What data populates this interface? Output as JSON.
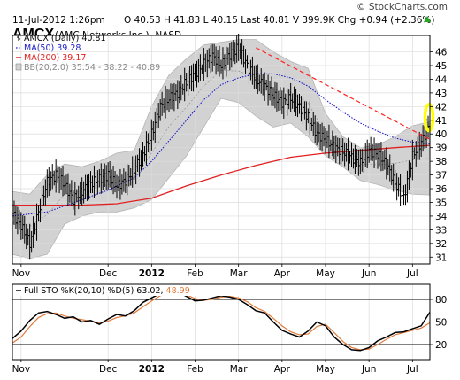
{
  "header": {
    "date_time": "11-Jul-2012 1:26pm",
    "quote_line": "O 40.53 H 41.83 L 40.15 Last 40.81 V 399.9K Chg +0.94 (+2.36%)",
    "watermark": "© StockCharts.com"
  },
  "title": {
    "symbol": "AMCX",
    "name": "(AMC Networks Inc.)",
    "exchange": "NASD"
  },
  "colors": {
    "price": "#000000",
    "ma50": "#1a1ac8",
    "ma200": "#e02020",
    "bollinger_fill": "#d2d2d2",
    "trendline": "#ff2020",
    "highlight": "#ffff00",
    "stoch_k": "#000000",
    "stoch_d": "#e07a3a",
    "up_arrow": "#22aa22"
  },
  "chart_data": [
    {
      "type": "ohlc",
      "title": "AMCX (Daily) 40.81",
      "legend": [
        {
          "label": "AMCX (Daily) 40.81",
          "color": "#000000"
        },
        {
          "label": "MA(50) 39.28",
          "color": "#1a1ac8",
          "style": "dotted"
        },
        {
          "label": "MA(200) 39.17",
          "color": "#e02020",
          "style": "solid"
        },
        {
          "label": "BB(20,2.0) 35.54 - 38.22 - 40.89",
          "color": "#888888",
          "style": "band"
        }
      ],
      "legend_placement": "top-left",
      "x_tick_labels": [
        "Nov",
        "Dec",
        "2012",
        "Feb",
        "Mar",
        "Apr",
        "May",
        "Jun",
        "Jul"
      ],
      "y_axis_side": "right",
      "y_ticks": [
        31,
        32,
        33,
        34,
        35,
        36,
        37,
        38,
        39,
        40,
        41,
        42,
        43,
        44,
        45,
        46
      ],
      "ylim": [
        30.5,
        47.2
      ],
      "grid": true,
      "series": [
        {
          "name": "AMCX (Daily)",
          "kind": "close_path",
          "points": [
            [
              0,
              34.2
            ],
            [
              5,
              33.3
            ],
            [
              10,
              32.0
            ],
            [
              15,
              34.3
            ],
            [
              20,
              36.5
            ],
            [
              25,
              37.0
            ],
            [
              30,
              36.3
            ],
            [
              35,
              35.2
            ],
            [
              40,
              35.8
            ],
            [
              45,
              36.4
            ],
            [
              50,
              36.7
            ],
            [
              55,
              37.0
            ],
            [
              60,
              36.2
            ],
            [
              65,
              36.6
            ],
            [
              70,
              37.4
            ],
            [
              75,
              38.5
            ],
            [
              80,
              40.0
            ],
            [
              85,
              42.0
            ],
            [
              90,
              42.6
            ],
            [
              95,
              43.0
            ],
            [
              100,
              43.8
            ],
            [
              105,
              44.4
            ],
            [
              110,
              45.1
            ],
            [
              115,
              45.7
            ],
            [
              120,
              45.0
            ],
            [
              125,
              45.8
            ],
            [
              130,
              46.3
            ],
            [
              135,
              45.0
            ],
            [
              140,
              44.0
            ],
            [
              145,
              43.5
            ],
            [
              150,
              42.8
            ],
            [
              155,
              42.3
            ],
            [
              160,
              42.6
            ],
            [
              165,
              42.0
            ],
            [
              170,
              41.2
            ],
            [
              175,
              40.0
            ],
            [
              180,
              39.6
            ],
            [
              185,
              39.0
            ],
            [
              190,
              38.7
            ],
            [
              195,
              38.3
            ],
            [
              200,
              37.9
            ],
            [
              205,
              38.8
            ],
            [
              210,
              38.5
            ],
            [
              215,
              37.8
            ],
            [
              220,
              36.4
            ],
            [
              225,
              35.3
            ],
            [
              230,
              38.4
            ],
            [
              235,
              39.4
            ],
            [
              240,
              40.81
            ]
          ]
        },
        {
          "name": "MA(50) 39.28",
          "kind": "line",
          "style": "dotted",
          "points": [
            [
              0,
              34.0
            ],
            [
              20,
              34.3
            ],
            [
              40,
              35.2
            ],
            [
              55,
              35.9
            ],
            [
              70,
              36.8
            ],
            [
              80,
              38.0
            ],
            [
              90,
              39.5
            ],
            [
              100,
              41.0
            ],
            [
              110,
              42.5
            ],
            [
              120,
              43.6
            ],
            [
              130,
              44.1
            ],
            [
              140,
              44.4
            ],
            [
              150,
              44.4
            ],
            [
              160,
              44.1
            ],
            [
              170,
              43.5
            ],
            [
              180,
              42.5
            ],
            [
              190,
              41.6
            ],
            [
              200,
              40.8
            ],
            [
              210,
              40.2
            ],
            [
              220,
              39.7
            ],
            [
              230,
              39.4
            ],
            [
              240,
              39.28
            ]
          ]
        },
        {
          "name": "MA(200) 39.17",
          "kind": "line",
          "style": "solid",
          "points": [
            [
              0,
              34.8
            ],
            [
              20,
              34.8
            ],
            [
              40,
              34.8
            ],
            [
              60,
              34.9
            ],
            [
              80,
              35.3
            ],
            [
              100,
              36.2
            ],
            [
              120,
              37.0
            ],
            [
              140,
              37.7
            ],
            [
              160,
              38.3
            ],
            [
              180,
              38.6
            ],
            [
              200,
              38.8
            ],
            [
              220,
              39.0
            ],
            [
              240,
              39.17
            ]
          ]
        },
        {
          "name": "BB upper",
          "kind": "band_upper",
          "points": [
            [
              0,
              35.8
            ],
            [
              10,
              35.6
            ],
            [
              20,
              37.0
            ],
            [
              30,
              37.8
            ],
            [
              40,
              37.6
            ],
            [
              50,
              38.0
            ],
            [
              60,
              38.6
            ],
            [
              70,
              38.8
            ],
            [
              80,
              42.0
            ],
            [
              90,
              44.3
            ],
            [
              100,
              45.5
            ],
            [
              110,
              46.5
            ],
            [
              120,
              46.7
            ],
            [
              130,
              46.9
            ],
            [
              140,
              46.9
            ],
            [
              150,
              46.0
            ],
            [
              160,
              45.3
            ],
            [
              170,
              44.8
            ],
            [
              180,
              41.5
            ],
            [
              190,
              39.8
            ],
            [
              200,
              39.0
            ],
            [
              210,
              39.2
            ],
            [
              220,
              39.8
            ],
            [
              230,
              40.6
            ],
            [
              240,
              40.89
            ]
          ]
        },
        {
          "name": "BB lower",
          "kind": "band_lower",
          "points": [
            [
              240,
              35.54
            ],
            [
              230,
              35.6
            ],
            [
              220,
              35.9
            ],
            [
              210,
              36.3
            ],
            [
              200,
              36.6
            ],
            [
              190,
              37.6
            ],
            [
              180,
              38.4
            ],
            [
              170,
              39.8
            ],
            [
              160,
              40.8
            ],
            [
              150,
              40.5
            ],
            [
              140,
              41.3
            ],
            [
              130,
              42.3
            ],
            [
              120,
              42.6
            ],
            [
              110,
              40.5
            ],
            [
              100,
              38.4
            ],
            [
              90,
              36.8
            ],
            [
              80,
              35.2
            ],
            [
              70,
              34.6
            ],
            [
              60,
              34.3
            ],
            [
              50,
              34.3
            ],
            [
              40,
              34.0
            ],
            [
              30,
              33.4
            ],
            [
              20,
              31.2
            ],
            [
              10,
              30.9
            ],
            [
              0,
              31.2
            ]
          ]
        },
        {
          "name": "Trendline",
          "kind": "line",
          "style": "dashed",
          "points": [
            [
              140,
              46.3
            ],
            [
              240,
              39.6
            ]
          ]
        }
      ]
    },
    {
      "type": "line",
      "title": "Full STO %K(20,10) %D(5) 63.02, 48.99",
      "legend": [
        {
          "label": "Full STO %K(20,10) %D(5) 63.02, 48.99",
          "color": "#000000"
        }
      ],
      "x_tick_labels": [
        "Nov",
        "Dec",
        "2012",
        "Feb",
        "Mar",
        "Apr",
        "May",
        "Jun",
        "Jul"
      ],
      "y_ticks": [
        20,
        50,
        80
      ],
      "ylim": [
        0,
        100
      ],
      "reference_lines": [
        20,
        50,
        80
      ],
      "series": [
        {
          "name": "%K",
          "points": [
            [
              0,
              28
            ],
            [
              5,
              38
            ],
            [
              10,
              52
            ],
            [
              15,
              62
            ],
            [
              20,
              64
            ],
            [
              25,
              60
            ],
            [
              30,
              55
            ],
            [
              35,
              57
            ],
            [
              40,
              50
            ],
            [
              45,
              52
            ],
            [
              50,
              47
            ],
            [
              55,
              54
            ],
            [
              60,
              60
            ],
            [
              65,
              58
            ],
            [
              70,
              65
            ],
            [
              75,
              76
            ],
            [
              80,
              82
            ],
            [
              85,
              88
            ],
            [
              90,
              93
            ],
            [
              95,
              90
            ],
            [
              100,
              84
            ],
            [
              105,
              78
            ],
            [
              110,
              79
            ],
            [
              115,
              82
            ],
            [
              120,
              85
            ],
            [
              125,
              83
            ],
            [
              130,
              80
            ],
            [
              135,
              73
            ],
            [
              140,
              65
            ],
            [
              145,
              62
            ],
            [
              150,
              50
            ],
            [
              155,
              39
            ],
            [
              160,
              34
            ],
            [
              165,
              30
            ],
            [
              170,
              38
            ],
            [
              175,
              50
            ],
            [
              180,
              45
            ],
            [
              185,
              30
            ],
            [
              190,
              20
            ],
            [
              195,
              13
            ],
            [
              200,
              12
            ],
            [
              205,
              16
            ],
            [
              210,
              25
            ],
            [
              215,
              30
            ],
            [
              220,
              36
            ],
            [
              225,
              37
            ],
            [
              230,
              41
            ],
            [
              235,
              45
            ],
            [
              240,
              63.02
            ]
          ]
        },
        {
          "name": "%D",
          "points": [
            [
              0,
              22
            ],
            [
              5,
              30
            ],
            [
              10,
              44
            ],
            [
              15,
              56
            ],
            [
              20,
              61
            ],
            [
              25,
              62
            ],
            [
              30,
              58
            ],
            [
              35,
              55
            ],
            [
              40,
              53
            ],
            [
              45,
              51
            ],
            [
              50,
              49
            ],
            [
              55,
              51
            ],
            [
              60,
              56
            ],
            [
              65,
              58
            ],
            [
              70,
              62
            ],
            [
              75,
              70
            ],
            [
              80,
              78
            ],
            [
              85,
              85
            ],
            [
              90,
              89
            ],
            [
              95,
              91
            ],
            [
              100,
              86
            ],
            [
              105,
              81
            ],
            [
              110,
              79
            ],
            [
              115,
              80
            ],
            [
              120,
              83
            ],
            [
              125,
              84
            ],
            [
              130,
              82
            ],
            [
              135,
              77
            ],
            [
              140,
              69
            ],
            [
              145,
              64
            ],
            [
              150,
              55
            ],
            [
              155,
              45
            ],
            [
              160,
              37
            ],
            [
              165,
              33
            ],
            [
              170,
              34
            ],
            [
              175,
              44
            ],
            [
              180,
              47
            ],
            [
              185,
              36
            ],
            [
              190,
              24
            ],
            [
              195,
              16
            ],
            [
              200,
              13
            ],
            [
              205,
              14
            ],
            [
              210,
              20
            ],
            [
              215,
              27
            ],
            [
              220,
              33
            ],
            [
              225,
              36
            ],
            [
              230,
              39
            ],
            [
              235,
              42
            ],
            [
              240,
              48.99
            ]
          ]
        }
      ]
    }
  ]
}
